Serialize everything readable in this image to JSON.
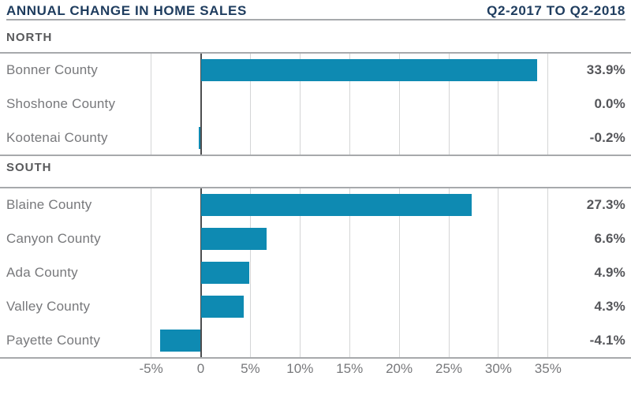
{
  "header": {
    "title": "ANNUAL CHANGE IN HOME SALES",
    "period": "Q2-2017 TO Q2-2018"
  },
  "colors": {
    "navy": "#1e3c5e",
    "bar": "#0e8ab2",
    "zero_line": "#4d4e50",
    "gridline": "#d4d5d6",
    "border": "#a7a9ac",
    "label_grey": "#77787b",
    "section_grey": "#58595b",
    "value_grey": "#55565a"
  },
  "chart_data": {
    "type": "bar",
    "orientation": "horizontal",
    "title": "ANNUAL CHANGE IN HOME SALES",
    "subtitle": "Q2-2017 TO Q2-2018",
    "unit": "percent",
    "x_axis": {
      "ticks": [
        -5,
        0,
        5,
        10,
        15,
        20,
        25,
        30,
        35
      ],
      "tick_labels": [
        "-5%",
        "0",
        "5%",
        "10%",
        "15%",
        "20%",
        "25%",
        "30%",
        "35%"
      ],
      "xlim": [
        -5,
        35
      ],
      "grid": true
    },
    "legend": "none",
    "groups": [
      {
        "label": "NORTH",
        "rows": [
          {
            "county": "Bonner County",
            "value": 33.9,
            "value_label": "33.9%"
          },
          {
            "county": "Shoshone County",
            "value": 0.0,
            "value_label": "0.0%"
          },
          {
            "county": "Kootenai County",
            "value": -0.2,
            "value_label": "-0.2%"
          }
        ]
      },
      {
        "label": "SOUTH",
        "rows": [
          {
            "county": "Blaine County",
            "value": 27.3,
            "value_label": "27.3%"
          },
          {
            "county": "Canyon County",
            "value": 6.6,
            "value_label": "6.6%"
          },
          {
            "county": "Ada County",
            "value": 4.9,
            "value_label": "4.9%"
          },
          {
            "county": "Valley County",
            "value": 4.3,
            "value_label": "4.3%"
          },
          {
            "county": "Payette County",
            "value": -4.1,
            "value_label": "-4.1%"
          }
        ]
      }
    ]
  }
}
